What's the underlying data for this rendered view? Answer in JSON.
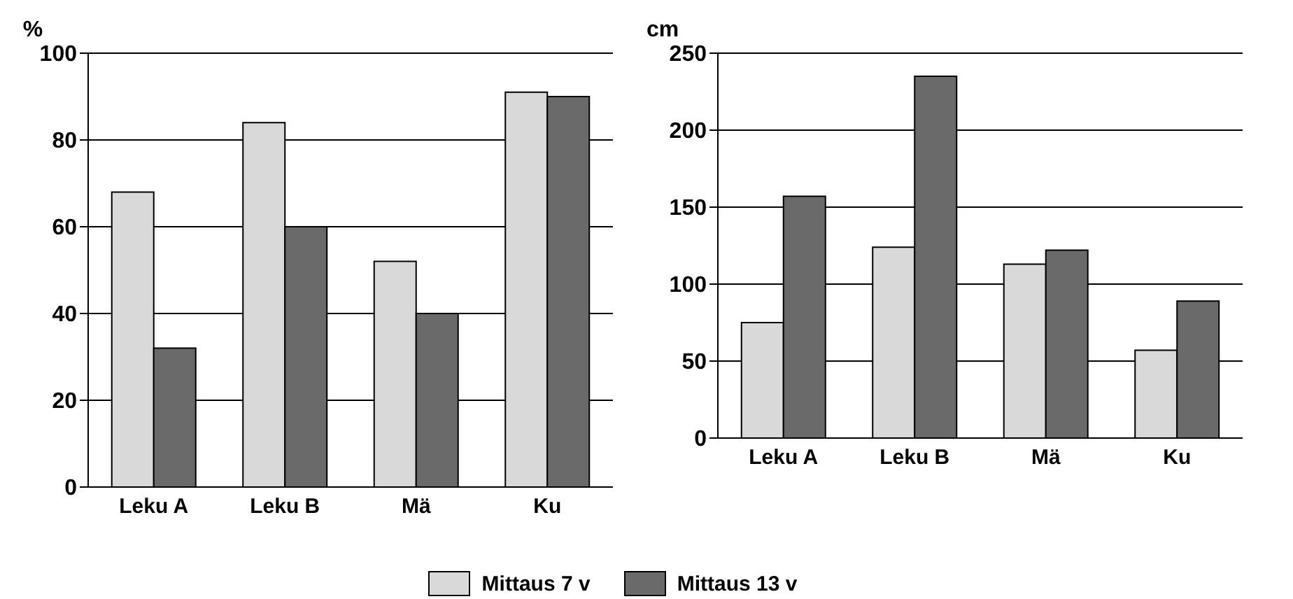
{
  "chart_data": [
    {
      "type": "bar",
      "ylabel": "%",
      "categories": [
        "Leku A",
        "Leku B",
        "Mä",
        "Ku"
      ],
      "series": [
        {
          "name": "Mittaus 7 v",
          "color": "#d9d9d9",
          "values": [
            68,
            84,
            52,
            91
          ]
        },
        {
          "name": "Mittaus 13 v",
          "color": "#6a6a6a",
          "values": [
            32,
            60,
            40,
            90
          ]
        }
      ],
      "ylim": [
        0,
        100
      ],
      "yticks": [
        0,
        20,
        40,
        60,
        80,
        100
      ],
      "grid": "y",
      "legend": "bottom"
    },
    {
      "type": "bar",
      "ylabel": "cm",
      "categories": [
        "Leku A",
        "Leku B",
        "Mä",
        "Ku"
      ],
      "series": [
        {
          "color": "#d9d9d9",
          "values": [
            75,
            124,
            113,
            57
          ]
        },
        {
          "color": "#6a6a6a",
          "values": [
            157,
            235,
            122,
            89
          ]
        }
      ],
      "ylim": [
        0,
        250
      ],
      "yticks": [
        0,
        50,
        100,
        150,
        200,
        250
      ],
      "grid": "y"
    }
  ]
}
